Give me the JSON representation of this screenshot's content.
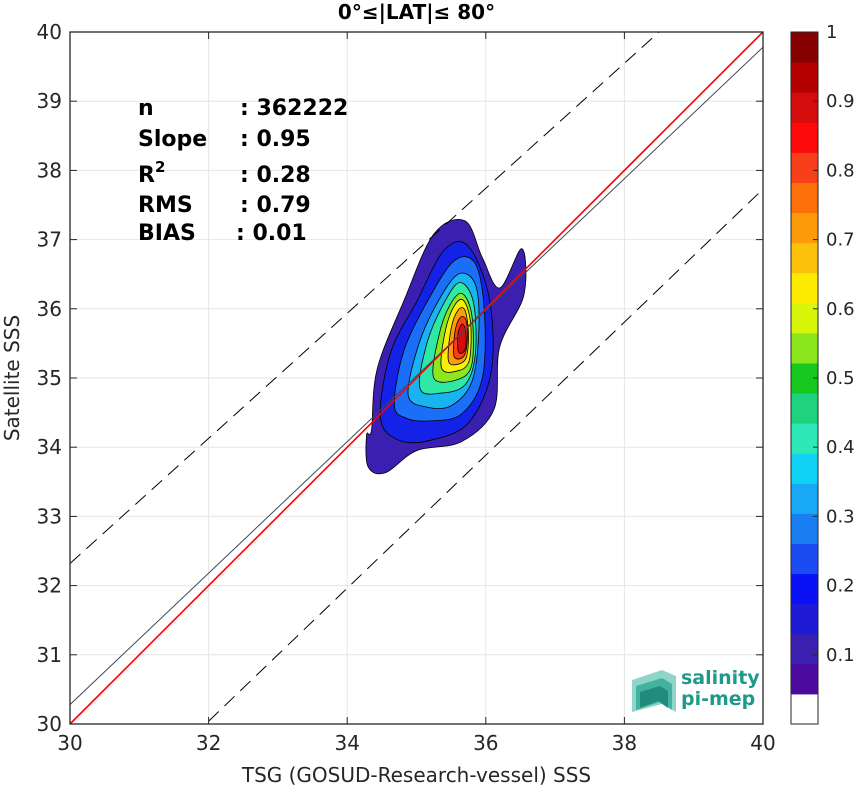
{
  "chart_data": {
    "type": "contour-scatter",
    "title": "0°≤|LAT|≤ 80°",
    "xlabel": "TSG (GOSUD-Research-vessel) SSS",
    "ylabel": "Satellite SSS",
    "xlim": [
      30,
      40
    ],
    "ylim": [
      30,
      40
    ],
    "xticks": [
      "30",
      "32",
      "34",
      "36",
      "38",
      "40"
    ],
    "yticks": [
      "30",
      "31",
      "32",
      "33",
      "34",
      "35",
      "36",
      "37",
      "38",
      "39",
      "40"
    ],
    "grid": true,
    "stats": [
      {
        "label": "n",
        "value": ": 362222"
      },
      {
        "label": "Slope",
        "value": ": 0.95"
      },
      {
        "label": "R",
        "sup": "2",
        "value": ": 0.28"
      },
      {
        "label": "RMS",
        "value": ": 0.79"
      },
      {
        "label": "BIAS",
        "value": ": 0.01"
      }
    ],
    "reference_lines": [
      {
        "kind": "one-to-one",
        "color": "#ff0000",
        "points": [
          [
            30,
            30
          ],
          [
            40,
            40
          ]
        ]
      },
      {
        "kind": "regression",
        "color": "#3a4a5a",
        "points": [
          [
            30,
            30.28
          ],
          [
            40,
            39.78
          ]
        ]
      },
      {
        "kind": "upper-dashed",
        "color": "#000000",
        "points": [
          [
            30,
            32.32
          ],
          [
            38.5,
            40
          ]
        ]
      },
      {
        "kind": "lower-dashed",
        "color": "#000000",
        "points": [
          [
            32,
            30.04
          ],
          [
            40,
            37.73
          ]
        ]
      }
    ],
    "density_peak": {
      "x": 35.65,
      "y": 35.6
    },
    "contour_levels": [
      {
        "level": 0.05,
        "color": "#3b1fb0",
        "points": [
          [
            34.35,
            34.25
          ],
          [
            34.43,
            35.12
          ],
          [
            34.82,
            36.12
          ],
          [
            35.25,
            37.08
          ],
          [
            35.7,
            37.27
          ],
          [
            35.95,
            36.74
          ],
          [
            36.2,
            36.3
          ],
          [
            36.52,
            36.87
          ],
          [
            36.55,
            36.2
          ],
          [
            36.2,
            35.45
          ],
          [
            36.12,
            34.55
          ],
          [
            35.65,
            34.08
          ],
          [
            35,
            33.95
          ],
          [
            34.55,
            33.63
          ],
          [
            34.3,
            33.72
          ],
          [
            34.28,
            34.18
          ]
        ]
      },
      {
        "level": 0.15,
        "color": "#1422e8",
        "points": [
          [
            34.48,
            34.42
          ],
          [
            34.62,
            35.35
          ],
          [
            35.0,
            36.1
          ],
          [
            35.4,
            36.85
          ],
          [
            35.75,
            36.9
          ],
          [
            36.05,
            36.15
          ],
          [
            36.08,
            35.1
          ],
          [
            35.75,
            34.35
          ],
          [
            35.2,
            34.1
          ],
          [
            34.75,
            34.1
          ]
        ]
      },
      {
        "level": 0.25,
        "color": "#1a6ef7",
        "points": [
          [
            34.68,
            34.62
          ],
          [
            34.82,
            35.4
          ],
          [
            35.18,
            36.15
          ],
          [
            35.55,
            36.7
          ],
          [
            35.85,
            36.65
          ],
          [
            35.98,
            35.95
          ],
          [
            35.95,
            35.0
          ],
          [
            35.65,
            34.48
          ],
          [
            35.2,
            34.38
          ],
          [
            34.85,
            34.42
          ]
        ]
      },
      {
        "level": 0.35,
        "color": "#19b3f2",
        "points": [
          [
            34.88,
            34.75
          ],
          [
            35.02,
            35.45
          ],
          [
            35.28,
            36.05
          ],
          [
            35.6,
            36.5
          ],
          [
            35.85,
            36.35
          ],
          [
            35.9,
            35.7
          ],
          [
            35.8,
            34.95
          ],
          [
            35.5,
            34.6
          ],
          [
            35.15,
            34.58
          ]
        ]
      },
      {
        "level": 0.45,
        "color": "#2ee8a6",
        "points": [
          [
            35.05,
            34.85
          ],
          [
            35.15,
            35.5
          ],
          [
            35.38,
            36.05
          ],
          [
            35.62,
            36.38
          ],
          [
            35.82,
            36.1
          ],
          [
            35.85,
            35.35
          ],
          [
            35.7,
            34.9
          ],
          [
            35.35,
            34.78
          ]
        ]
      },
      {
        "level": 0.55,
        "color": "#8de61e",
        "points": [
          [
            35.25,
            35.0
          ],
          [
            35.32,
            35.6
          ],
          [
            35.48,
            36.05
          ],
          [
            35.66,
            36.22
          ],
          [
            35.8,
            35.9
          ],
          [
            35.8,
            35.2
          ],
          [
            35.6,
            34.98
          ]
        ]
      },
      {
        "level": 0.65,
        "color": "#f8ee0a",
        "points": [
          [
            35.36,
            35.15
          ],
          [
            35.42,
            35.7
          ],
          [
            35.55,
            36.05
          ],
          [
            35.68,
            36.12
          ],
          [
            35.78,
            35.8
          ],
          [
            35.76,
            35.25
          ],
          [
            35.58,
            35.1
          ]
        ]
      },
      {
        "level": 0.75,
        "color": "#fc9c0a",
        "points": [
          [
            35.46,
            35.25
          ],
          [
            35.5,
            35.72
          ],
          [
            35.6,
            35.98
          ],
          [
            35.7,
            35.98
          ],
          [
            35.75,
            35.65
          ],
          [
            35.72,
            35.3
          ],
          [
            35.6,
            35.2
          ]
        ]
      },
      {
        "level": 0.85,
        "color": "#f7401a",
        "points": [
          [
            35.54,
            35.32
          ],
          [
            35.56,
            35.7
          ],
          [
            35.64,
            35.88
          ],
          [
            35.72,
            35.82
          ],
          [
            35.73,
            35.5
          ],
          [
            35.67,
            35.3
          ]
        ]
      },
      {
        "level": 0.95,
        "color": "#d40c0c",
        "points": [
          [
            35.6,
            35.4
          ],
          [
            35.6,
            35.65
          ],
          [
            35.66,
            35.78
          ],
          [
            35.71,
            35.68
          ],
          [
            35.71,
            35.45
          ],
          [
            35.66,
            35.36
          ]
        ]
      }
    ],
    "colorbar": {
      "range": [
        0,
        1
      ],
      "ticks": [
        "0.1",
        "0.2",
        "0.3",
        "0.4",
        "0.5",
        "0.6",
        "0.7",
        "0.8",
        "0.9",
        "1"
      ],
      "colors": [
        "#ffffff",
        "#4c0a9e",
        "#3b1fb0",
        "#1f1ad6",
        "#0a12f5",
        "#1a4cf2",
        "#1a7ef2",
        "#19a8f5",
        "#10d2f5",
        "#2ee8b8",
        "#1fd27e",
        "#15c91f",
        "#8ce61e",
        "#d9f50a",
        "#fcea00",
        "#fcc20a",
        "#fc9a0a",
        "#fc700a",
        "#f7401a",
        "#fc0a0a",
        "#d40c0c",
        "#b50000",
        "#860000"
      ]
    }
  },
  "logo": {
    "line1": "salinity",
    "line2": "pi-mep"
  }
}
